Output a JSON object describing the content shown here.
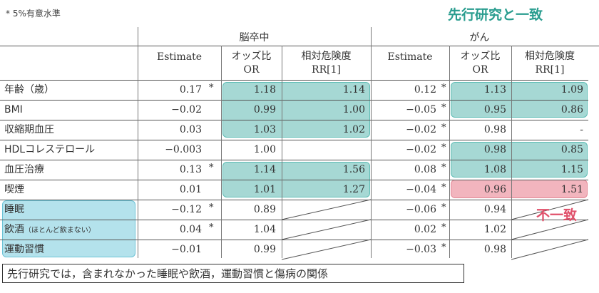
{
  "note": "* 5%有意水準",
  "callouts": {
    "agree": "先行研究と一致",
    "disagree": "不一致"
  },
  "groups": [
    "脳卒中",
    "がん"
  ],
  "columns": {
    "estimate": "Estimate",
    "or_line1": "オッズ比",
    "or_line2": "OR",
    "rr_line1": "相対危険度",
    "rr_line2": "RR[1]"
  },
  "rows": [
    {
      "label": "年齢（歳）",
      "s_est": "0.17",
      "s_sig": "*",
      "s_or": "1.18",
      "s_rr": "1.14",
      "c_est": "0.12",
      "c_sig": "*",
      "c_or": "1.13",
      "c_rr": "1.09"
    },
    {
      "label": "BMI",
      "s_est": "−0.02",
      "s_sig": "",
      "s_or": "0.99",
      "s_rr": "1.00",
      "c_est": "−0.05",
      "c_sig": "*",
      "c_or": "0.95",
      "c_rr": "0.86"
    },
    {
      "label": "収縮期血圧",
      "s_est": "0.03",
      "s_sig": "",
      "s_or": "1.03",
      "s_rr": "1.02",
      "c_est": "−0.02",
      "c_sig": "*",
      "c_or": "0.98",
      "c_rr": "-"
    },
    {
      "label": "HDLコレステロール",
      "s_est": "−0.003",
      "s_sig": "",
      "s_or": "1.00",
      "s_rr": "",
      "c_est": "−0.02",
      "c_sig": "*",
      "c_or": "0.98",
      "c_rr": "0.85"
    },
    {
      "label": "血圧治療",
      "s_est": "0.13",
      "s_sig": "*",
      "s_or": "1.14",
      "s_rr": "1.56",
      "c_est": "0.08",
      "c_sig": "*",
      "c_or": "1.08",
      "c_rr": "1.15"
    },
    {
      "label": "喫煙",
      "s_est": "0.01",
      "s_sig": "",
      "s_or": "1.01",
      "s_rr": "1.27",
      "c_est": "−0.04",
      "c_sig": "*",
      "c_or": "0.96",
      "c_rr": "1.51"
    },
    {
      "label": "睡眠",
      "s_est": "−0.12",
      "s_sig": "*",
      "s_or": "0.89",
      "s_rr": "",
      "c_est": "−0.06",
      "c_sig": "*",
      "c_or": "0.94",
      "c_rr": ""
    },
    {
      "label": "飲酒",
      "label_note": "（ほとんど飲まない）",
      "s_est": "0.04",
      "s_sig": "*",
      "s_or": "1.04",
      "s_rr": "",
      "c_est": "0.02",
      "c_sig": "*",
      "c_or": "1.02",
      "c_rr": ""
    },
    {
      "label": "運動習慣",
      "s_est": "−0.01",
      "s_sig": "",
      "s_or": "0.99",
      "s_rr": "",
      "c_est": "−0.03",
      "c_sig": "*",
      "c_or": "0.98",
      "c_rr": ""
    }
  ],
  "footer": "先行研究では，含まれなかった睡眠や飲酒，運動習慣と傷病の関係",
  "colors": {
    "agree": "#2a9d8f",
    "disagree": "#e0506a",
    "highlight_teal": "#a6d8d4",
    "highlight_red": "#f2b5be",
    "highlight_blue": "#b4e2ec"
  }
}
